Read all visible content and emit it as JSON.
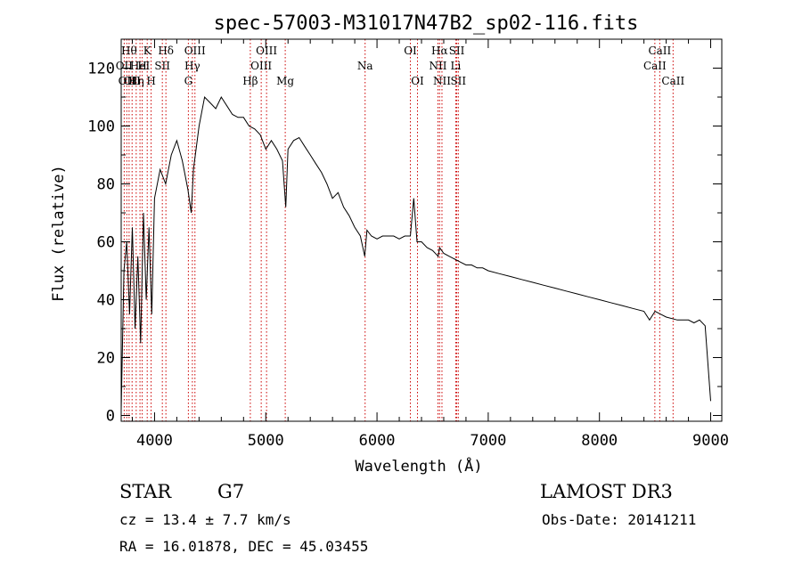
{
  "chart_data": {
    "type": "line",
    "title": "spec-57003-M31017N47B2_sp02-116.fits",
    "xlabel": "Wavelength (Å)",
    "ylabel": "Flux (relative)",
    "xlim": [
      3700,
      9100
    ],
    "ylim": [
      -2,
      130
    ],
    "x_ticks": [
      4000,
      5000,
      6000,
      7000,
      8000,
      9000
    ],
    "x_tick_labels": [
      "4000",
      "5000",
      "6000",
      "7000",
      "8000",
      "9000"
    ],
    "y_ticks": [
      0,
      20,
      40,
      60,
      80,
      100,
      120
    ],
    "y_tick_labels": [
      "0",
      "20",
      "40",
      "60",
      "80",
      "100",
      "120"
    ],
    "grid": false,
    "series": [
      {
        "name": "spectrum",
        "color": "#000000",
        "x": [
          3700,
          3725,
          3750,
          3775,
          3800,
          3825,
          3850,
          3875,
          3900,
          3925,
          3950,
          3975,
          4000,
          4050,
          4100,
          4150,
          4200,
          4250,
          4300,
          4330,
          4350,
          4400,
          4450,
          4500,
          4550,
          4600,
          4650,
          4700,
          4750,
          4800,
          4850,
          4900,
          4950,
          5000,
          5050,
          5100,
          5150,
          5180,
          5200,
          5250,
          5300,
          5350,
          5400,
          5450,
          5500,
          5550,
          5600,
          5650,
          5700,
          5750,
          5800,
          5850,
          5890,
          5910,
          5950,
          6000,
          6050,
          6100,
          6150,
          6200,
          6250,
          6300,
          6330,
          6360,
          6400,
          6450,
          6500,
          6550,
          6563,
          6600,
          6650,
          6700,
          6750,
          6800,
          6850,
          6900,
          6950,
          7000,
          7100,
          7200,
          7300,
          7400,
          7500,
          7600,
          7700,
          7800,
          7900,
          8000,
          8100,
          8200,
          8300,
          8400,
          8450,
          8500,
          8550,
          8600,
          8700,
          8800,
          8850,
          8900,
          8950,
          9000
        ],
        "y": [
          2,
          50,
          60,
          35,
          65,
          30,
          55,
          25,
          70,
          40,
          65,
          35,
          75,
          85,
          80,
          90,
          95,
          88,
          78,
          70,
          85,
          100,
          110,
          108,
          106,
          110,
          107,
          104,
          103,
          103,
          100,
          99,
          97,
          92,
          95,
          92,
          88,
          72,
          92,
          95,
          96,
          93,
          90,
          87,
          84,
          80,
          75,
          77,
          72,
          69,
          65,
          62,
          55,
          64,
          62,
          61,
          62,
          62,
          62,
          61,
          62,
          62,
          75,
          60,
          60,
          58,
          57,
          55,
          58,
          56,
          55,
          54,
          53,
          52,
          52,
          51,
          51,
          50,
          49,
          48,
          47,
          46,
          45,
          44,
          43,
          42,
          41,
          40,
          39,
          38,
          37,
          36,
          33,
          36,
          35,
          34,
          33,
          33,
          32,
          33,
          31,
          5
        ]
      }
    ],
    "lines": [
      {
        "w": 3727,
        "label": "OII",
        "row": 2
      },
      {
        "w": 3750,
        "label": "OII",
        "row": 3
      },
      {
        "w": 3771,
        "label": "Hθ",
        "row": 1
      },
      {
        "w": 3798,
        "label": "OII",
        "row": 3
      },
      {
        "w": 3835,
        "label": "Hη",
        "row": 3
      },
      {
        "w": 3869,
        "label": "HeI",
        "row": 2
      },
      {
        "w": 3889,
        "label": "H",
        "row": 2
      },
      {
        "w": 3934,
        "label": "K",
        "row": 1
      },
      {
        "w": 3969,
        "label": "H",
        "row": 3
      },
      {
        "w": 4070,
        "label": "SII",
        "row": 2
      },
      {
        "w": 4102,
        "label": "Hδ",
        "row": 1
      },
      {
        "w": 4304,
        "label": "G",
        "row": 3
      },
      {
        "w": 4340,
        "label": "Hγ",
        "row": 2
      },
      {
        "w": 4363,
        "label": "OIII",
        "row": 1
      },
      {
        "w": 4861,
        "label": "Hβ",
        "row": 3
      },
      {
        "w": 4959,
        "label": "OIII",
        "row": 2
      },
      {
        "w": 5007,
        "label": "OIII",
        "row": 1
      },
      {
        "w": 5175,
        "label": "Mg",
        "row": 3
      },
      {
        "w": 5893,
        "label": "Na",
        "row": 2
      },
      {
        "w": 6300,
        "label": "OI",
        "row": 1
      },
      {
        "w": 6364,
        "label": "OI",
        "row": 3
      },
      {
        "w": 6548,
        "label": "NII",
        "row": 2
      },
      {
        "w": 6563,
        "label": "Hα",
        "row": 1
      },
      {
        "w": 6584,
        "label": "NII",
        "row": 3
      },
      {
        "w": 6708,
        "label": "Li",
        "row": 2
      },
      {
        "w": 6717,
        "label": "SII",
        "row": 1
      },
      {
        "w": 6731,
        "label": "SII",
        "row": 3
      },
      {
        "w": 8498,
        "label": "CaII",
        "row": 2
      },
      {
        "w": 8542,
        "label": "CaII",
        "row": 1
      },
      {
        "w": 8662,
        "label": "CaII",
        "row": 3
      }
    ],
    "line_color": "#cc0000"
  },
  "info": {
    "object_class": "STAR",
    "subclass": "G7",
    "survey": "LAMOST DR3",
    "redshift_text": "cz = 13.4 ± 7.7 km/s",
    "obs_date_text": "Obs-Date: 20141211",
    "coords_text": "RA =  16.01878, DEC =  45.03455"
  }
}
